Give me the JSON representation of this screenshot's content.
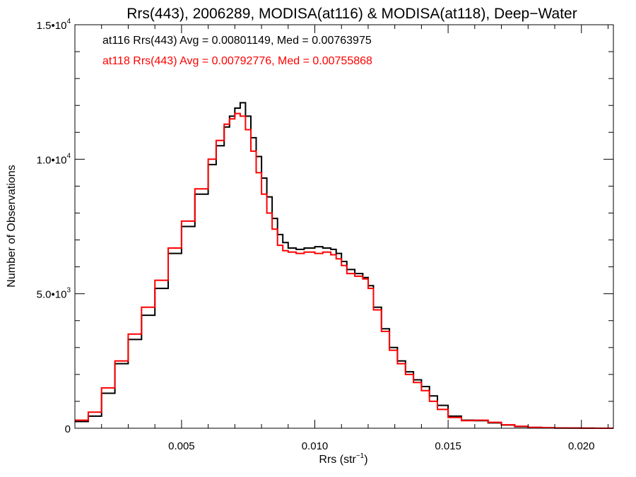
{
  "chart_data": {
    "type": "line",
    "title": "Rrs(443), 2006289, MODISA(at116) & MODISA(at118), Deep−Water",
    "xlabel": {
      "text": "Rrs (str",
      "sup": "−1",
      "suffix": ")"
    },
    "ylabel": "Number of Observations",
    "xlim": [
      0.001,
      0.0212
    ],
    "ylim": [
      0,
      15000
    ],
    "grid": false,
    "xticks": [
      {
        "value": 0.005,
        "label": "0.005"
      },
      {
        "value": 0.01,
        "label": "0.010"
      },
      {
        "value": 0.015,
        "label": "0.015"
      },
      {
        "value": 0.02,
        "label": "0.020"
      }
    ],
    "yticks": [
      {
        "value": 0,
        "label": "0",
        "sup": ""
      },
      {
        "value": 5000,
        "label": "5.0•10",
        "sup": "3"
      },
      {
        "value": 10000,
        "label": "1.0•10",
        "sup": "4"
      },
      {
        "value": 15000,
        "label": "1.5•10",
        "sup": "4"
      }
    ],
    "annotations": [
      {
        "text": "at116 Rrs(443) Avg = 0.00801149, Med = 0.00763975",
        "color": "#000000"
      },
      {
        "text": "at118 Rrs(443) Avg = 0.00792776, Med = 0.00755868",
        "color": "#ff0000"
      }
    ],
    "series": [
      {
        "color": "#000000",
        "style": "step",
        "x": [
          0.001,
          0.0015,
          0.002,
          0.0025,
          0.003,
          0.0035,
          0.004,
          0.0045,
          0.005,
          0.0055,
          0.006,
          0.0063,
          0.0066,
          0.0068,
          0.007,
          0.0072,
          0.0074,
          0.0076,
          0.0078,
          0.008,
          0.0082,
          0.0084,
          0.0086,
          0.0088,
          0.009,
          0.0093,
          0.0096,
          0.01,
          0.0103,
          0.0106,
          0.0108,
          0.011,
          0.0112,
          0.0115,
          0.0118,
          0.012,
          0.0122,
          0.0125,
          0.0128,
          0.0131,
          0.0134,
          0.0137,
          0.014,
          0.0143,
          0.0146,
          0.015,
          0.0155,
          0.016,
          0.0165,
          0.017,
          0.0175,
          0.018,
          0.0185,
          0.019,
          0.0195,
          0.02,
          0.0205,
          0.0212
        ],
        "y": [
          250,
          450,
          1300,
          2400,
          3300,
          4200,
          5200,
          6500,
          7500,
          8700,
          9800,
          10500,
          11200,
          11600,
          11900,
          12100,
          11600,
          10800,
          10100,
          9300,
          8600,
          7800,
          7200,
          6900,
          6700,
          6650,
          6700,
          6750,
          6700,
          6650,
          6500,
          6200,
          5900,
          5750,
          5600,
          5300,
          4500,
          3700,
          3000,
          2500,
          2100,
          1800,
          1550,
          1200,
          850,
          450,
          300,
          280,
          200,
          120,
          60,
          30,
          15,
          8,
          4,
          2,
          1,
          0
        ]
      },
      {
        "color": "#ff0000",
        "style": "step",
        "x": [
          0.001,
          0.0015,
          0.002,
          0.0025,
          0.003,
          0.0035,
          0.004,
          0.0045,
          0.005,
          0.0055,
          0.006,
          0.0063,
          0.0066,
          0.0068,
          0.007,
          0.0072,
          0.0074,
          0.0076,
          0.0078,
          0.008,
          0.0082,
          0.0084,
          0.0086,
          0.0088,
          0.009,
          0.0093,
          0.0096,
          0.01,
          0.0103,
          0.0106,
          0.0108,
          0.011,
          0.0112,
          0.0115,
          0.0118,
          0.012,
          0.0122,
          0.0125,
          0.0128,
          0.0131,
          0.0134,
          0.0137,
          0.014,
          0.0143,
          0.0146,
          0.015,
          0.0155,
          0.016,
          0.0165,
          0.017,
          0.0175,
          0.018,
          0.0185,
          0.019,
          0.0195,
          0.02,
          0.0205,
          0.0212
        ],
        "y": [
          300,
          600,
          1500,
          2500,
          3500,
          4500,
          5500,
          6700,
          7700,
          8900,
          10000,
          10700,
          11300,
          11500,
          11700,
          11600,
          11100,
          10300,
          9500,
          8700,
          8000,
          7400,
          6800,
          6600,
          6550,
          6500,
          6550,
          6500,
          6550,
          6450,
          6300,
          6050,
          5750,
          5650,
          5550,
          5200,
          4400,
          3600,
          2900,
          2400,
          2000,
          1700,
          1400,
          1000,
          700,
          400,
          280,
          300,
          220,
          130,
          70,
          35,
          18,
          10,
          5,
          3,
          1,
          0
        ]
      }
    ]
  }
}
